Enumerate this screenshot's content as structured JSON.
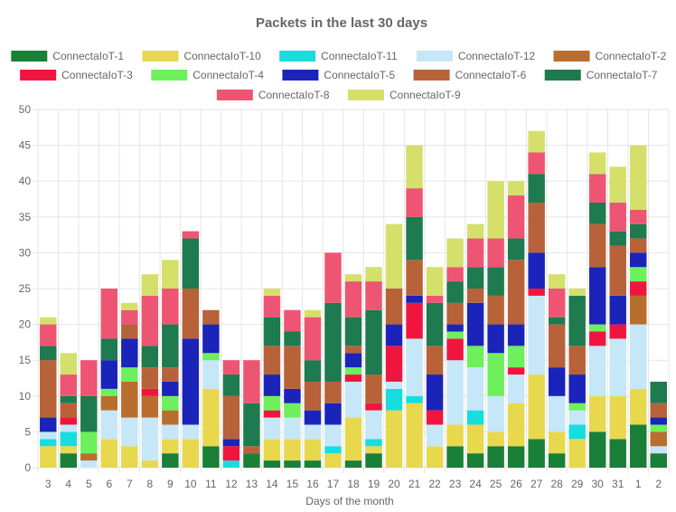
{
  "chart_data": {
    "type": "bar",
    "stacked": true,
    "title": "Packets in the last 30 days",
    "xlabel": "Days of the month",
    "ylabel": "",
    "ylim": [
      0,
      50
    ],
    "y_ticks": [
      0,
      5,
      10,
      15,
      20,
      25,
      30,
      35,
      40,
      45,
      50
    ],
    "grid": true,
    "legend_position": "top",
    "categories": [
      "3",
      "4",
      "5",
      "6",
      "7",
      "8",
      "9",
      "10",
      "11",
      "12",
      "13",
      "14",
      "15",
      "16",
      "17",
      "18",
      "19",
      "20",
      "21",
      "22",
      "23",
      "24",
      "25",
      "26",
      "27",
      "28",
      "29",
      "30",
      "31",
      "1",
      "2"
    ],
    "series": [
      {
        "name": "ConnectaIoT-1",
        "color": "#1a7f37",
        "values": [
          0,
          2,
          0,
          0,
          0,
          0,
          2,
          0,
          3,
          0,
          2,
          1,
          1,
          1,
          0,
          1,
          2,
          0,
          0,
          0,
          3,
          2,
          3,
          3,
          4,
          2,
          0,
          5,
          4,
          6,
          2
        ]
      },
      {
        "name": "ConnectaIoT-10",
        "color": "#e8d84e",
        "values": [
          3,
          1,
          0,
          4,
          3,
          1,
          2,
          4,
          8,
          0,
          0,
          3,
          3,
          3,
          2,
          6,
          1,
          8,
          9,
          3,
          3,
          4,
          2,
          6,
          9,
          3,
          4,
          5,
          6,
          5,
          0
        ]
      },
      {
        "name": "ConnectaIoT-11",
        "color": "#17dddf",
        "values": [
          1,
          2,
          0,
          0,
          0,
          0,
          0,
          0,
          0,
          1,
          0,
          0,
          0,
          0,
          1,
          0,
          1,
          3,
          1,
          0,
          0,
          2,
          0,
          0,
          0,
          0,
          2,
          0,
          0,
          0,
          0
        ]
      },
      {
        "name": "ConnectaIoT-12",
        "color": "#c5e7f7",
        "values": [
          1,
          1,
          1,
          4,
          4,
          6,
          2,
          2,
          4,
          0,
          0,
          3,
          3,
          2,
          3,
          5,
          4,
          1,
          8,
          3,
          9,
          6,
          5,
          4,
          11,
          5,
          2,
          7,
          8,
          9,
          1
        ]
      },
      {
        "name": "ConnectaIoT-2",
        "color": "#b86e2e",
        "values": [
          0,
          0,
          1,
          2,
          5,
          3,
          2,
          0,
          0,
          0,
          0,
          0,
          0,
          0,
          0,
          0,
          0,
          0,
          0,
          0,
          0,
          0,
          0,
          0,
          0,
          0,
          0,
          0,
          0,
          4,
          2
        ]
      },
      {
        "name": "ConnectaIoT-3",
        "color": "#f0153f",
        "values": [
          0,
          1,
          0,
          0,
          0,
          1,
          0,
          0,
          0,
          2,
          0,
          1,
          0,
          0,
          0,
          1,
          1,
          5,
          5,
          2,
          3,
          0,
          0,
          1,
          1,
          0,
          0,
          2,
          2,
          2,
          0
        ]
      },
      {
        "name": "ConnectaIoT-4",
        "color": "#6df05c",
        "values": [
          0,
          0,
          3,
          1,
          2,
          0,
          2,
          0,
          1,
          0,
          0,
          2,
          2,
          0,
          0,
          1,
          0,
          0,
          0,
          0,
          1,
          3,
          6,
          3,
          0,
          0,
          1,
          1,
          0,
          2,
          1
        ]
      },
      {
        "name": "ConnectaIoT-5",
        "color": "#1a24b8",
        "values": [
          2,
          0,
          0,
          4,
          4,
          0,
          2,
          12,
          4,
          1,
          0,
          3,
          2,
          2,
          3,
          2,
          0,
          3,
          1,
          5,
          1,
          6,
          4,
          3,
          5,
          4,
          4,
          8,
          4,
          2,
          1
        ]
      },
      {
        "name": "ConnectaIoT-6",
        "color": "#b8623a",
        "values": [
          8,
          2,
          0,
          0,
          2,
          3,
          2,
          7,
          2,
          6,
          1,
          4,
          6,
          4,
          3,
          1,
          4,
          5,
          5,
          4,
          3,
          2,
          4,
          9,
          7,
          6,
          4,
          6,
          7,
          2,
          2
        ]
      },
      {
        "name": "ConnectaIoT-7",
        "color": "#1e7a4f",
        "values": [
          2,
          1,
          5,
          3,
          0,
          3,
          6,
          7,
          0,
          3,
          6,
          4,
          2,
          3,
          11,
          4,
          9,
          0,
          6,
          6,
          3,
          3,
          4,
          3,
          4,
          1,
          7,
          3,
          2,
          2,
          3
        ]
      },
      {
        "name": "ConnectaIoT-8",
        "color": "#ee5572",
        "values": [
          3,
          3,
          5,
          7,
          2,
          7,
          5,
          1,
          0,
          2,
          6,
          3,
          3,
          6,
          7,
          5,
          4,
          0,
          4,
          1,
          2,
          4,
          4,
          6,
          3,
          4,
          0,
          4,
          4,
          2,
          0
        ]
      },
      {
        "name": "ConnectaIoT-9",
        "color": "#d4e06a",
        "values": [
          1,
          3,
          0,
          0,
          1,
          3,
          4,
          0,
          0,
          0,
          0,
          1,
          0,
          1,
          0,
          1,
          2,
          9,
          6,
          4,
          4,
          2,
          8,
          2,
          3,
          2,
          1,
          3,
          5,
          9,
          0
        ]
      }
    ]
  }
}
